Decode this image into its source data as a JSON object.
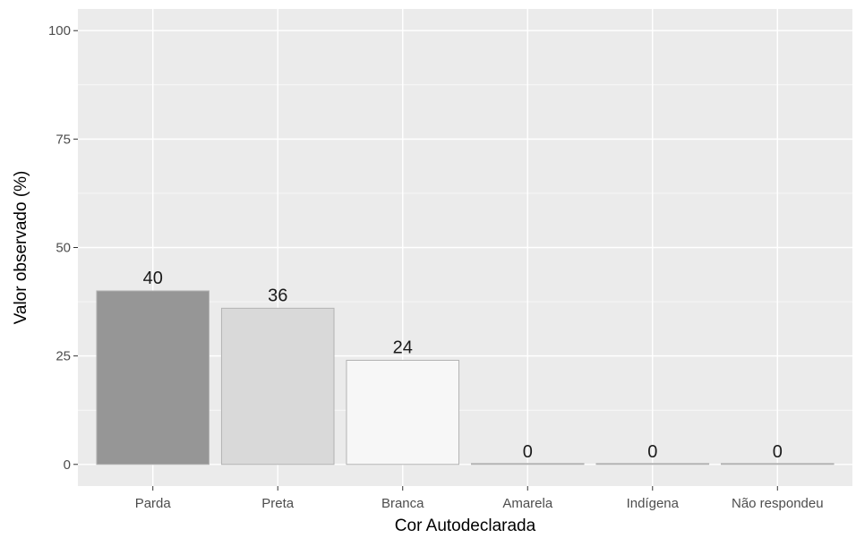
{
  "chart_data": {
    "type": "bar",
    "categories": [
      "Parda",
      "Preta",
      "Branca",
      "Amarela",
      "Indígena",
      "Não respondeu"
    ],
    "values": [
      40,
      36,
      24,
      0,
      0,
      0
    ],
    "data_labels": [
      "40",
      "36",
      "24",
      "0",
      "0",
      "0"
    ],
    "xlabel": "Cor Autodeclarada",
    "ylabel": "Valor observado (%)",
    "ylim": [
      -5,
      105
    ],
    "yticks": [
      0,
      25,
      50,
      75,
      100
    ],
    "grid": true,
    "legend": "none",
    "colors": {
      "panel_background": "#ebebeb",
      "grid_major": "#ffffff",
      "bar_fills": [
        "#969696",
        "#d9d9d9",
        "#f7f7f7",
        "#f7f7f7",
        "#f7f7f7",
        "#f7f7f7"
      ],
      "bar_outline": "#b3b3b3"
    }
  }
}
